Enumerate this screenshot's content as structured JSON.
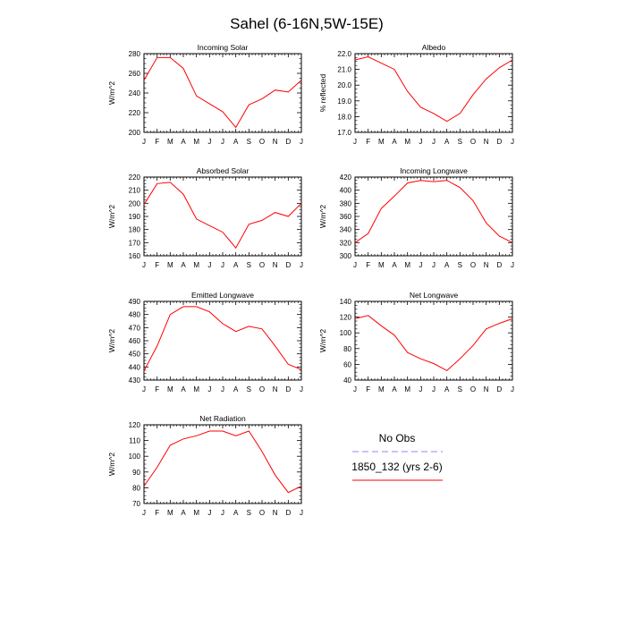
{
  "page_title": "Sahel (6-16N,5W-15E)",
  "legend": {
    "obs_label": "No Obs",
    "model_label": "1850_132 (yrs 2-6)",
    "obs_color": "#8888ff",
    "model_color": "#ff0000"
  },
  "chart_data": [
    {
      "type": "line",
      "title": "Incoming Solar",
      "ylabel": "W/m^2",
      "categories": [
        "J",
        "F",
        "M",
        "A",
        "M",
        "J",
        "J",
        "A",
        "S",
        "O",
        "N",
        "D",
        "J"
      ],
      "ylim": [
        200,
        280
      ],
      "yticks": [
        200,
        220,
        240,
        260,
        280
      ],
      "ytick_labels": [
        "200",
        "220",
        "240",
        "260",
        "280"
      ],
      "series": [
        {
          "name": "1850_132 (yrs 2-6)",
          "values": [
            253,
            276,
            276,
            265,
            237,
            229,
            221,
            205,
            228,
            234,
            243,
            241,
            253
          ]
        }
      ]
    },
    {
      "type": "line",
      "title": "Albedo",
      "ylabel": "% reflected",
      "categories": [
        "J",
        "F",
        "M",
        "A",
        "M",
        "J",
        "J",
        "A",
        "S",
        "O",
        "N",
        "D",
        "J"
      ],
      "ylim": [
        17,
        22
      ],
      "yticks": [
        17,
        18,
        19,
        20,
        21,
        22
      ],
      "ytick_labels": [
        "17.0",
        "18.0",
        "19.0",
        "20.0",
        "21.0",
        "22.0"
      ],
      "series": [
        {
          "name": "1850_132 (yrs 2-6)",
          "values": [
            21.6,
            21.8,
            21.4,
            21.0,
            19.6,
            18.6,
            18.2,
            17.7,
            18.2,
            19.4,
            20.4,
            21.1,
            21.6
          ]
        }
      ]
    },
    {
      "type": "line",
      "title": "Absorbed Solar",
      "ylabel": "W/m^2",
      "categories": [
        "J",
        "F",
        "M",
        "A",
        "M",
        "J",
        "J",
        "A",
        "S",
        "O",
        "N",
        "D",
        "J"
      ],
      "ylim": [
        160,
        220
      ],
      "yticks": [
        160,
        170,
        180,
        190,
        200,
        210,
        220
      ],
      "ytick_labels": [
        "160",
        "170",
        "180",
        "190",
        "200",
        "210",
        "220"
      ],
      "series": [
        {
          "name": "1850_132 (yrs 2-6)",
          "values": [
            199,
            215,
            216,
            207,
            188,
            183,
            178,
            166,
            184,
            187,
            193,
            190,
            200
          ]
        }
      ]
    },
    {
      "type": "line",
      "title": "Incoming Longwave",
      "ylabel": "W/m^2",
      "categories": [
        "J",
        "F",
        "M",
        "A",
        "M",
        "J",
        "J",
        "A",
        "S",
        "O",
        "N",
        "D",
        "J"
      ],
      "ylim": [
        300,
        420
      ],
      "yticks": [
        300,
        320,
        340,
        360,
        380,
        400,
        420
      ],
      "ytick_labels": [
        "300",
        "320",
        "340",
        "360",
        "380",
        "400",
        "420"
      ],
      "series": [
        {
          "name": "1850_132 (yrs 2-6)",
          "values": [
            320,
            334,
            372,
            391,
            411,
            415,
            413,
            415,
            404,
            384,
            350,
            330,
            320
          ]
        }
      ]
    },
    {
      "type": "line",
      "title": "Emitted Longwave",
      "ylabel": "W/m^2",
      "categories": [
        "J",
        "F",
        "M",
        "A",
        "M",
        "J",
        "J",
        "A",
        "S",
        "O",
        "N",
        "D",
        "J"
      ],
      "ylim": [
        430,
        490
      ],
      "yticks": [
        430,
        440,
        450,
        460,
        470,
        480,
        490
      ],
      "ytick_labels": [
        "430",
        "440",
        "450",
        "460",
        "470",
        "480",
        "490"
      ],
      "series": [
        {
          "name": "1850_132 (yrs 2-6)",
          "values": [
            437,
            456,
            480,
            486,
            486,
            482,
            473,
            467,
            471,
            469,
            456,
            442,
            438
          ]
        }
      ]
    },
    {
      "type": "line",
      "title": "Net Longwave",
      "ylabel": "W/m^2",
      "categories": [
        "J",
        "F",
        "M",
        "A",
        "M",
        "J",
        "J",
        "A",
        "S",
        "O",
        "N",
        "D",
        "J"
      ],
      "ylim": [
        40,
        140
      ],
      "yticks": [
        40,
        60,
        80,
        100,
        120,
        140
      ],
      "ytick_labels": [
        "40",
        "60",
        "80",
        "100",
        "120",
        "140"
      ],
      "series": [
        {
          "name": "1850_132 (yrs 2-6)",
          "values": [
            118,
            122,
            109,
            97,
            75,
            67,
            61,
            52,
            67,
            84,
            105,
            112,
            118
          ]
        }
      ]
    },
    {
      "type": "line",
      "title": "Net Radiation",
      "ylabel": "W/m^2",
      "categories": [
        "J",
        "F",
        "M",
        "A",
        "M",
        "J",
        "J",
        "A",
        "S",
        "O",
        "N",
        "D",
        "J"
      ],
      "ylim": [
        70,
        120
      ],
      "yticks": [
        70,
        80,
        90,
        100,
        110,
        120
      ],
      "ytick_labels": [
        "70",
        "80",
        "90",
        "100",
        "110",
        "120"
      ],
      "series": [
        {
          "name": "1850_132 (yrs 2-6)",
          "values": [
            81,
            93,
            107,
            111,
            113,
            116,
            116,
            113,
            116,
            103,
            88,
            77,
            81
          ]
        }
      ]
    }
  ]
}
